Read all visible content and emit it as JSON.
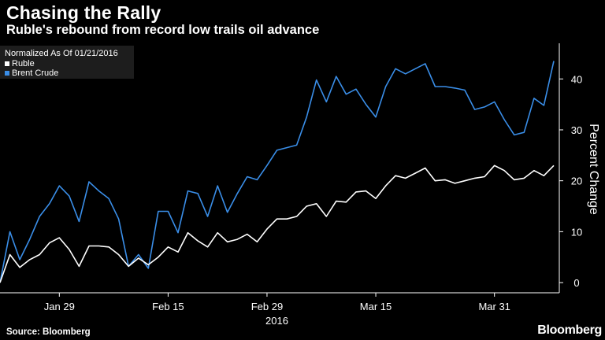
{
  "header": {
    "title": "Chasing the Rally",
    "subtitle": "Ruble's rebound from record low trails oil advance"
  },
  "legend": {
    "note": "Normalized As Of 01/21/2016",
    "items": [
      {
        "label": "Ruble",
        "color": "#ffffff"
      },
      {
        "label": "Brent Crude",
        "color": "#3a8ee8"
      }
    ]
  },
  "footer": {
    "source": "Source: Bloomberg",
    "brand": "Bloomberg"
  },
  "chart_data": {
    "type": "line",
    "title": "Chasing the Rally",
    "subtitle": "Ruble's rebound from record low trails oil advance",
    "ylabel": "Percent Change",
    "xlabel": "",
    "ylim": [
      -2,
      47
    ],
    "yticks": [
      0,
      10,
      20,
      30,
      40
    ],
    "xticks": [
      {
        "label": "Jan 29",
        "index": 6
      },
      {
        "label": "Feb 15",
        "index": 17
      },
      {
        "label": "Feb 29",
        "index": 27
      },
      {
        "label": "Mar 15",
        "index": 38
      },
      {
        "label": "Mar 31",
        "index": 50
      }
    ],
    "year_label": {
      "label": "2016",
      "index": 28
    },
    "grid": false,
    "legend_position": "top-left",
    "series": [
      {
        "name": "Ruble",
        "color": "#ffffff",
        "values": [
          0,
          5.5,
          3,
          4.5,
          5.5,
          7.8,
          8.8,
          6.5,
          3.2,
          7.2,
          7.2,
          7,
          5.5,
          3.2,
          4.8,
          3.5,
          5,
          7,
          6,
          9.8,
          8.2,
          7,
          9.8,
          8,
          8.5,
          9.5,
          8,
          10.5,
          12.5,
          12.5,
          13,
          15,
          15.5,
          13,
          16,
          15.8,
          17.8,
          18,
          16.5,
          19,
          21,
          20.5,
          21.5,
          22.5,
          20,
          20.2,
          19.5,
          20,
          20.5,
          20.8,
          23,
          22,
          20.2,
          20.5,
          22,
          21,
          23
        ]
      },
      {
        "name": "Brent Crude",
        "color": "#3a8ee8",
        "values": [
          0,
          10,
          4.5,
          8.5,
          13,
          15.5,
          19,
          17,
          12,
          19.8,
          18,
          16.5,
          12.5,
          3.2,
          5.5,
          2.8,
          14,
          14,
          9.8,
          18,
          17.5,
          13,
          19,
          13.8,
          17.5,
          20.8,
          20.2,
          23,
          26,
          26.5,
          27,
          32.5,
          39.8,
          35.5,
          40.5,
          37,
          38,
          35,
          32.5,
          38.5,
          42,
          41,
          42,
          43,
          38.5,
          38.5,
          38.2,
          37.8,
          34,
          34.5,
          35.5,
          32,
          29,
          29.5,
          36.2,
          34.8,
          43.5
        ]
      }
    ]
  }
}
